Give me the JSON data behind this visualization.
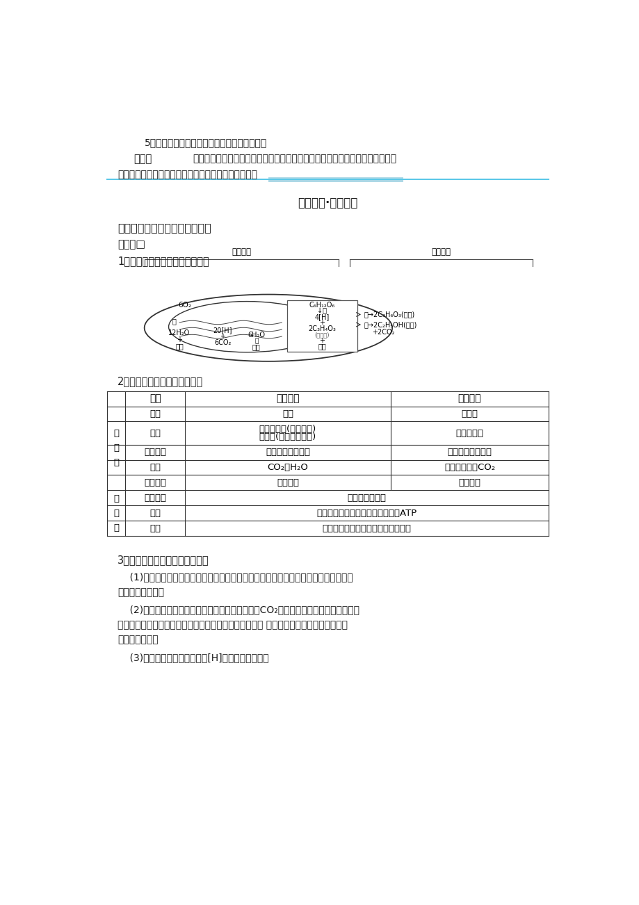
{
  "bg_color": "#ffffff",
  "page_width": 9.2,
  "page_height": 13.02,
  "section5_q": "5．有氧呼吸与无氧呼吸最本质的区别是什么？",
  "section5_hint_label": "提示：",
  "section5_hint_text": "有氧呼吸有机物彻底氧化分解，葡萄糖中的能量全部释放，无氧呼吸有机物未彻",
  "section5_hint_text2": "底分解，葡萄糖中的能量大部分贮存在酒精或乳酸中。",
  "section_title": "课内探究·名师点睛",
  "subsection_title": "有氧呼吸和无氧呼吸过程的比较",
  "knowledge_label": "知识点□",
  "diagram_title": "1．有氧呼吸和无氧呼吸过程图解",
  "comparison_title": "2．有氧呼吸和无氧呼吸的比较",
  "table_headers": [
    "项目",
    "有氧呼吸",
    "无氧呼吸"
  ],
  "table_rows_diff": [
    [
      "条件",
      "需氧",
      "不需氧"
    ],
    [
      "场所",
      "细胞质基质(第一阶段)\n线粒体(第二、三阶段)",
      "细胞质基质"
    ],
    [
      "分解程度",
      "葡萄糖被彻底分解",
      "葡萄糖分解不彻底"
    ],
    [
      "产物",
      "CO₂、H₂O",
      "乳酸或酒精和CO₂"
    ],
    [
      "能量释放",
      "大量能量",
      "少量能量"
    ]
  ],
  "table_rows_same": [
    [
      "反应条件",
      "需酶和适宜温度"
    ],
    [
      "本质",
      "氧化分解有机物，释放能量，生成ATP"
    ],
    [
      "过程",
      "第一阶段从葡萄糖到丙酮酸完全相同"
    ]
  ],
  "section3_title": "3．与无氧呼吸有关的几个易错点",
  "section3_p1": "    (1)不同生物无氧呼吸产物不同是由于催化反应的酶的种类不同，根本原因在于控制酶",
  "section3_p1b": "合成的基因不同。",
  "section3_p2": "    (2)大多数植物、酵母菌无氧呼吸的产物为酒精和CO₂；有些高等植物的某些器官如玉",
  "section3_p2b": "米胚、马铃薯块茎、甜菜块根等进行无氧呼吸时产生乳酸 高等动物、人及乳酸菌的无氧呼",
  "section3_p2c": "吸只产生乳酸。",
  "section3_p3": "    (3)无氧呼吸第一阶段产生的[H]用于还原丙酮酸。"
}
